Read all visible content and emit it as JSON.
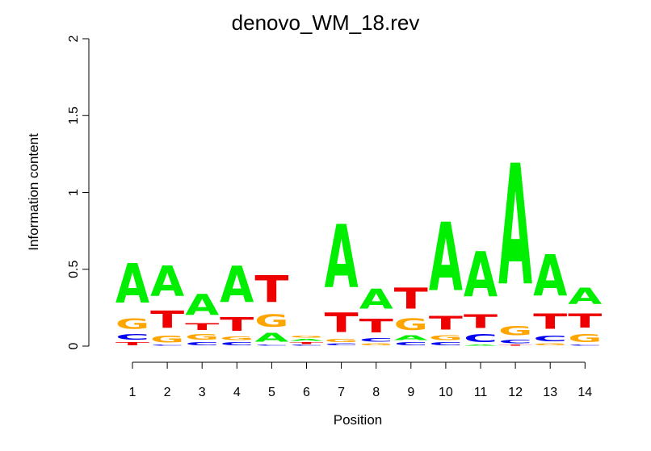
{
  "chart_data": {
    "type": "sequence-logo",
    "title": "denovo_WM_18.rev",
    "xlabel": "Position",
    "ylabel": "Information content",
    "ylim": [
      0,
      2
    ],
    "y_ticks": [
      "0",
      "0.5",
      "1",
      "1.5",
      "2"
    ],
    "x_ticks": [
      "1",
      "2",
      "3",
      "4",
      "5",
      "6",
      "7",
      "8",
      "9",
      "10",
      "11",
      "12",
      "13",
      "14"
    ],
    "colors": {
      "A": "#00ee00",
      "C": "#0000ee",
      "G": "#ffa500",
      "T": "#ee0000"
    },
    "positions": [
      {
        "position": 1,
        "stack": [
          [
            "T",
            0.03
          ],
          [
            "C",
            0.06
          ],
          [
            "G",
            0.11
          ],
          [
            "A",
            0.41
          ]
        ]
      },
      {
        "position": 2,
        "stack": [
          [
            "C",
            0.01
          ],
          [
            "G",
            0.07
          ],
          [
            "T",
            0.18
          ],
          [
            "A",
            0.32
          ]
        ]
      },
      {
        "position": 3,
        "stack": [
          [
            "C",
            0.03
          ],
          [
            "G",
            0.06
          ],
          [
            "T",
            0.07
          ],
          [
            "A",
            0.22
          ]
        ]
      },
      {
        "position": 4,
        "stack": [
          [
            "C",
            0.03
          ],
          [
            "G",
            0.04
          ],
          [
            "T",
            0.14
          ],
          [
            "A",
            0.38
          ]
        ]
      },
      {
        "position": 5,
        "stack": [
          [
            "C",
            0.01
          ],
          [
            "A",
            0.09
          ],
          [
            "G",
            0.13
          ],
          [
            "T",
            0.28
          ]
        ]
      },
      {
        "position": 6,
        "stack": [
          [
            "C",
            0.01
          ],
          [
            "T",
            0.02
          ],
          [
            "A",
            0.02
          ],
          [
            "G",
            0.02
          ]
        ]
      },
      {
        "position": 7,
        "stack": [
          [
            "C",
            0.02
          ],
          [
            "G",
            0.03
          ],
          [
            "T",
            0.2
          ],
          [
            "A",
            0.66
          ]
        ]
      },
      {
        "position": 8,
        "stack": [
          [
            "G",
            0.02
          ],
          [
            "C",
            0.04
          ],
          [
            "T",
            0.14
          ],
          [
            "A",
            0.21
          ]
        ]
      },
      {
        "position": 9,
        "stack": [
          [
            "C",
            0.03
          ],
          [
            "A",
            0.05
          ],
          [
            "G",
            0.12
          ],
          [
            "T",
            0.22
          ]
        ]
      },
      {
        "position": 10,
        "stack": [
          [
            "C",
            0.03
          ],
          [
            "G",
            0.05
          ],
          [
            "T",
            0.14
          ],
          [
            "A",
            0.71
          ]
        ]
      },
      {
        "position": 11,
        "stack": [
          [
            "A",
            0.01
          ],
          [
            "C",
            0.08
          ],
          [
            "T",
            0.14
          ],
          [
            "A",
            0.47
          ]
        ]
      },
      {
        "position": 12,
        "stack": [
          [
            "T",
            0.01
          ],
          [
            "C",
            0.04
          ],
          [
            "G",
            0.1
          ],
          [
            "A",
            1.26
          ]
        ]
      },
      {
        "position": 13,
        "stack": [
          [
            "G",
            0.02
          ],
          [
            "C",
            0.06
          ],
          [
            "T",
            0.16
          ],
          [
            "A",
            0.43
          ]
        ]
      },
      {
        "position": 14,
        "stack": [
          [
            "C",
            0.01
          ],
          [
            "G",
            0.08
          ],
          [
            "T",
            0.15
          ],
          [
            "A",
            0.17
          ]
        ]
      }
    ]
  }
}
